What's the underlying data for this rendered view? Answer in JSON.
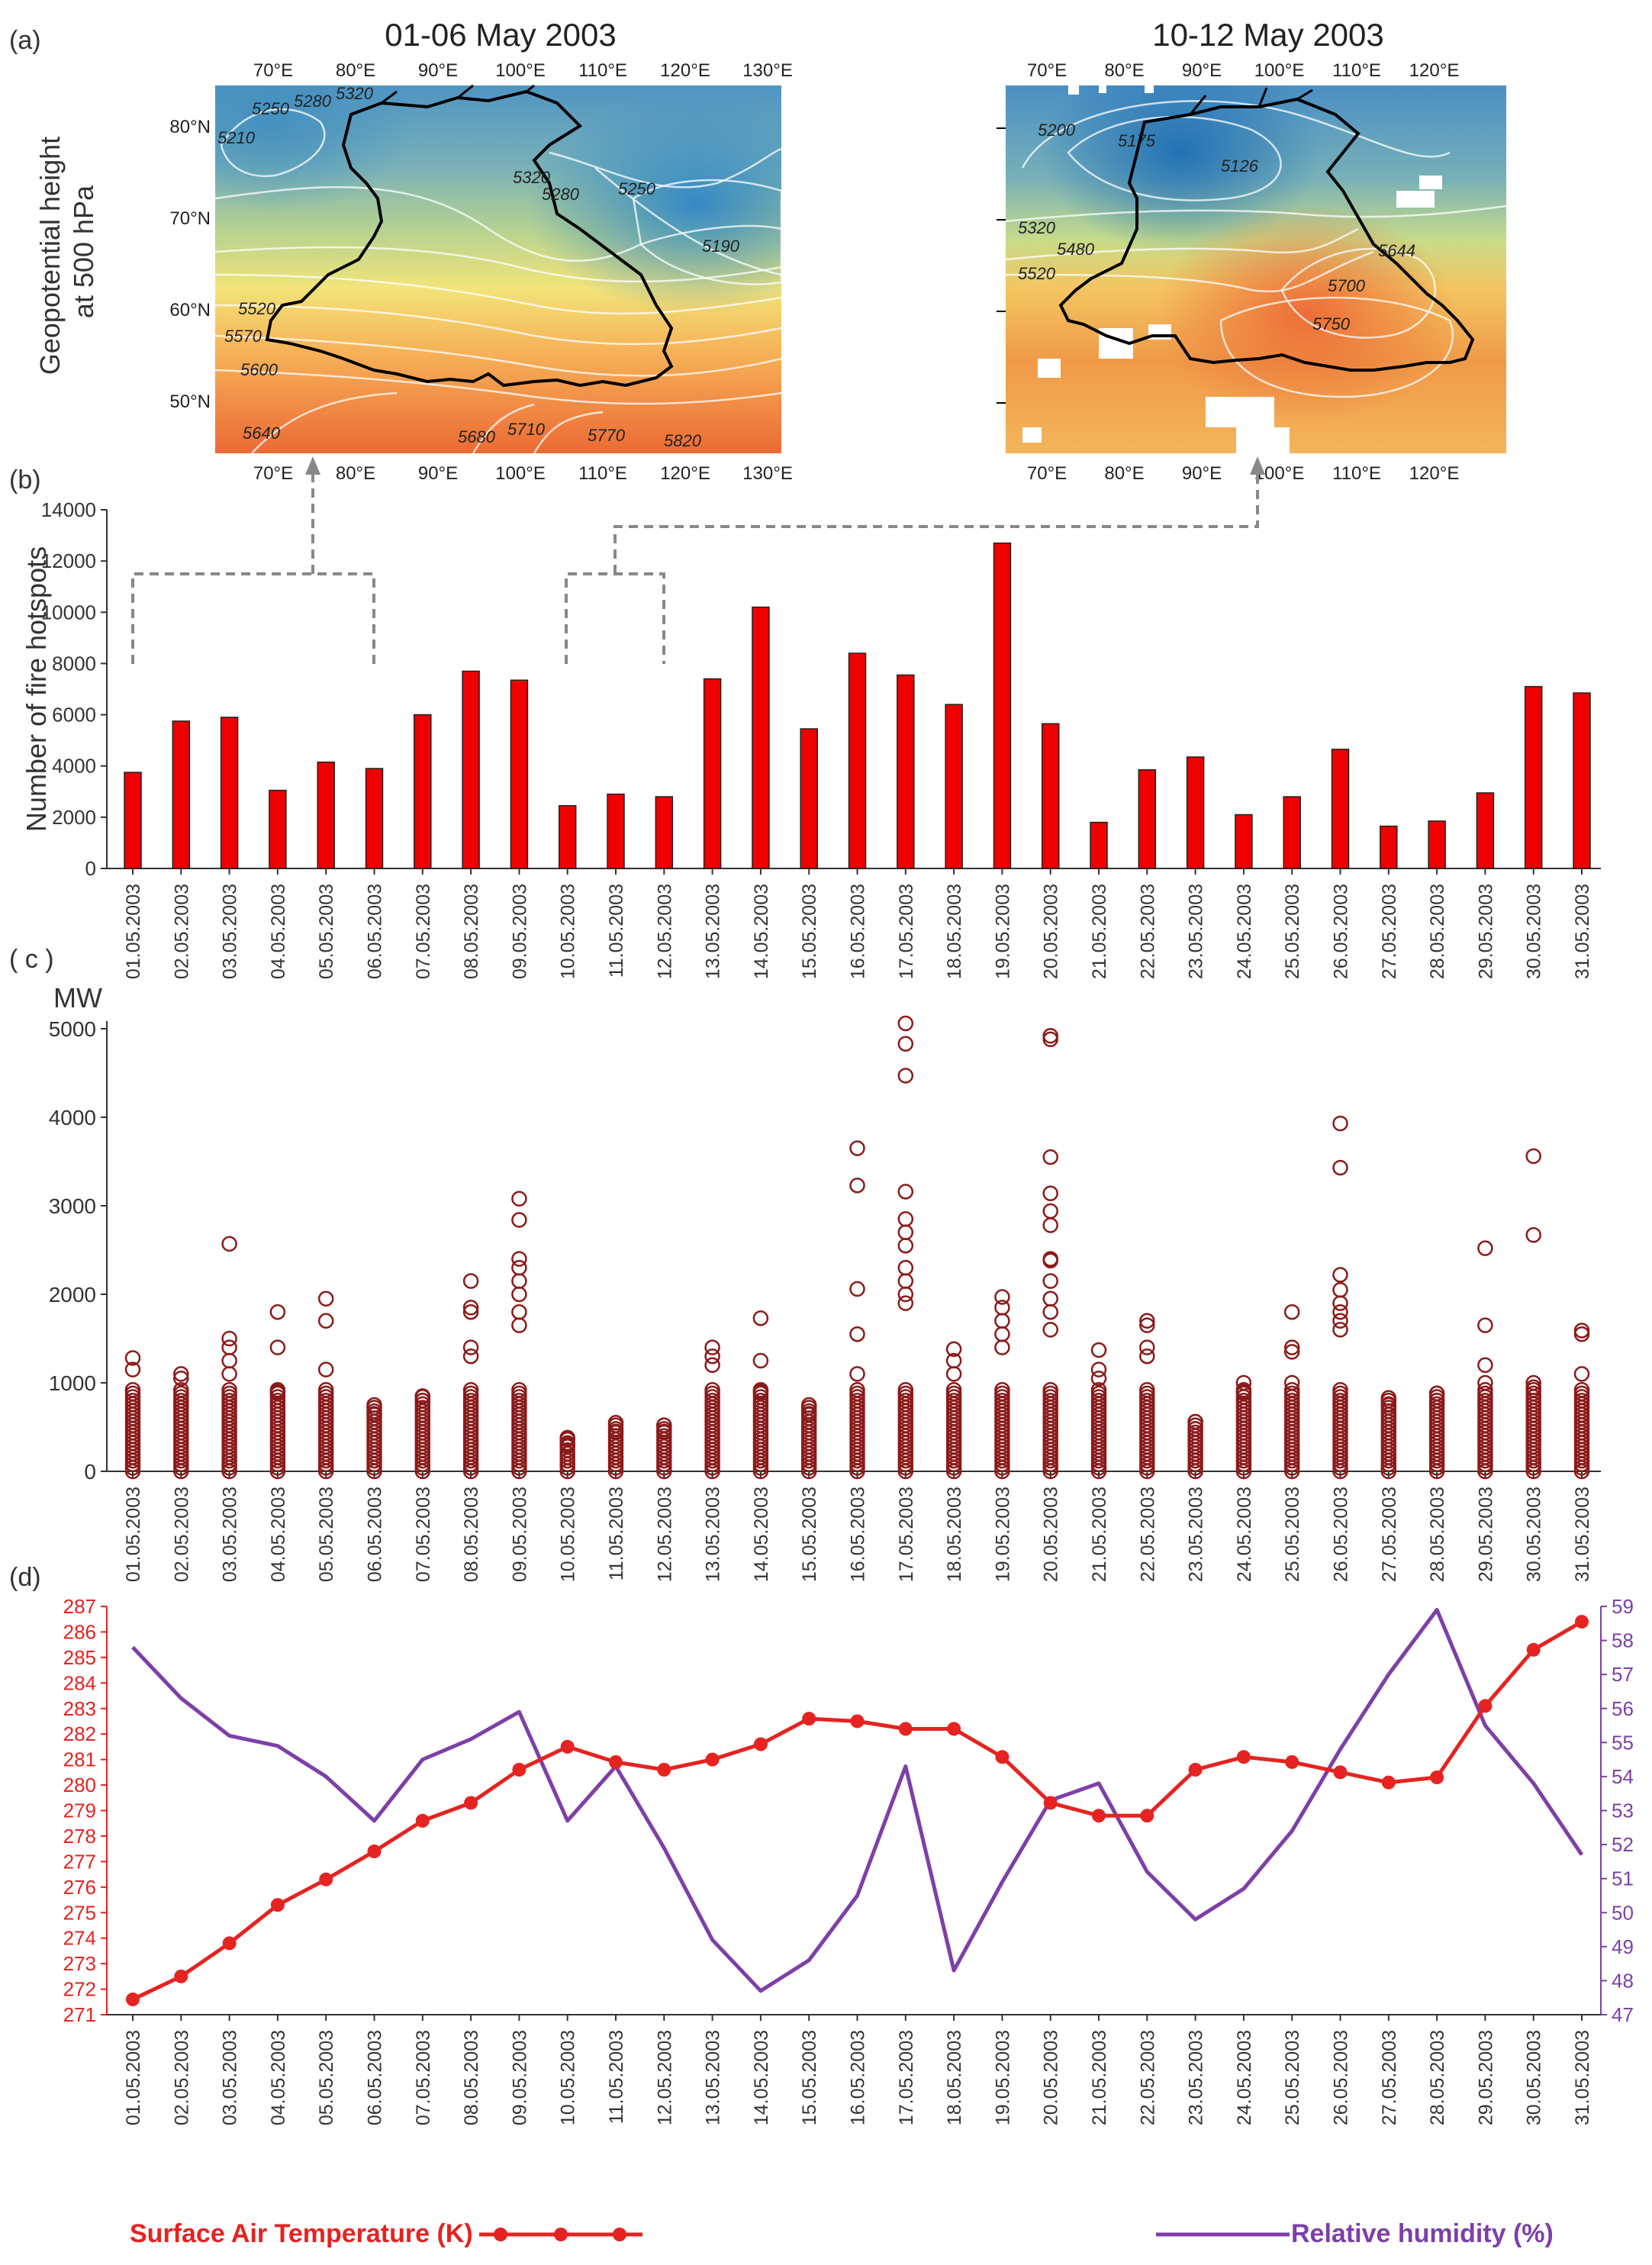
{
  "panel_labels": {
    "a": "(a)",
    "b": "(b)",
    "c": "( c )",
    "d": "(d)"
  },
  "colors": {
    "bars": "#ee0000",
    "frp_marker": "#8b1a1a",
    "temperature": "#e52320",
    "humidity": "#7e3fa8",
    "axis": "#333333",
    "dashed": "#888888"
  },
  "maps": {
    "ylabel": "Geopotential height at 500 hPa",
    "lat_ticks": [
      "80°N",
      "70°N",
      "60°N",
      "50°N"
    ],
    "left": {
      "title": "01-06 May 2003",
      "lon_ticks": [
        "70°E",
        "80°E",
        "90°E",
        "100°E",
        "110°E",
        "120°E",
        "130°E"
      ],
      "contour_labels": [
        "5250",
        "5280",
        "5320",
        "5210",
        "5320",
        "5280",
        "5250",
        "5190",
        "5520",
        "5570",
        "5600",
        "5640",
        "5680",
        "5710",
        "5770",
        "5820"
      ]
    },
    "right": {
      "title": "10-12 May 2003",
      "lon_ticks": [
        "70°E",
        "80°E",
        "90°E",
        "100°E",
        "110°E",
        "120°E"
      ],
      "contour_labels": [
        "5200",
        "5175",
        "5126",
        "5320",
        "5480",
        "5520",
        "5644",
        "5700",
        "5750"
      ]
    }
  },
  "chart_data": [
    {
      "id": "b",
      "type": "bar",
      "ylabel": "Number of fire hotspots",
      "ylim": [
        0,
        14000
      ],
      "yticks": [
        0,
        2000,
        4000,
        6000,
        8000,
        10000,
        12000,
        14000
      ],
      "categories": [
        "01.05.2003",
        "02.05.2003",
        "03.05.2003",
        "04.05.2003",
        "05.05.2003",
        "06.05.2003",
        "07.05.2003",
        "08.05.2003",
        "09.05.2003",
        "10.05.2003",
        "11.05.2003",
        "12.05.2003",
        "13.05.2003",
        "14.05.2003",
        "15.05.2003",
        "16.05.2003",
        "17.05.2003",
        "18.05.2003",
        "19.05.2003",
        "20.05.2003",
        "21.05.2003",
        "22.05.2003",
        "23.05.2003",
        "24.05.2003",
        "25.05.2003",
        "26.05.2003",
        "27.05.2003",
        "28.05.2003",
        "29.05.2003",
        "30.05.2003",
        "31.05.2003"
      ],
      "values": [
        3750,
        5750,
        5900,
        3050,
        4150,
        3900,
        6000,
        7700,
        7350,
        2450,
        2900,
        2800,
        7400,
        10200,
        5450,
        8400,
        7550,
        6400,
        12700,
        5650,
        1800,
        3850,
        4350,
        2100,
        2800,
        4650,
        1650,
        1850,
        2950,
        7100,
        6850
      ]
    },
    {
      "id": "c",
      "type": "scatter",
      "ylabel": "MW",
      "ylim": [
        0,
        5000
      ],
      "yticks": [
        0,
        1000,
        2000,
        3000,
        4000,
        5000
      ],
      "categories": [
        "01.05.2003",
        "02.05.2003",
        "03.05.2003",
        "04.05.2003",
        "05.05.2003",
        "06.05.2003",
        "07.05.2003",
        "08.05.2003",
        "09.05.2003",
        "10.05.2003",
        "11.05.2003",
        "12.05.2003",
        "13.05.2003",
        "14.05.2003",
        "15.05.2003",
        "16.05.2003",
        "17.05.2003",
        "18.05.2003",
        "19.05.2003",
        "20.05.2003",
        "21.05.2003",
        "22.05.2003",
        "23.05.2003",
        "24.05.2003",
        "25.05.2003",
        "26.05.2003",
        "27.05.2003",
        "28.05.2003",
        "29.05.2003",
        "30.05.2003",
        "31.05.2003"
      ],
      "max_values": [
        1280,
        1100,
        2570,
        1800,
        1950,
        750,
        850,
        2150,
        3080,
        380,
        550,
        520,
        1400,
        1730,
        750,
        3650,
        5060,
        1380,
        1970,
        4920,
        1370,
        1700,
        560,
        1000,
        1800,
        3930,
        830,
        880,
        2520,
        3560,
        1590
      ],
      "outliers": [
        [
          1150
        ],
        [
          1050
        ],
        [
          1500,
          1400,
          1250,
          1100
        ],
        [
          1400,
          900
        ],
        [
          1700,
          1150
        ],
        [
          650
        ],
        [
          800
        ],
        [
          1850,
          1800,
          1400,
          1300
        ],
        [
          2840,
          2400,
          2300,
          2150,
          2000,
          1800,
          1650
        ],
        [
          300
        ],
        [
          450
        ],
        [
          450
        ],
        [
          1300,
          1200
        ],
        [
          1250,
          900
        ],
        [
          650
        ],
        [
          3230,
          2060,
          1550,
          1100
        ],
        [
          4830,
          4470,
          3160,
          2850,
          2700,
          2550,
          2300,
          2150,
          2000,
          1900
        ],
        [
          1250,
          1100
        ],
        [
          1850,
          1700,
          1550,
          1400
        ],
        [
          4880,
          3550,
          3140,
          2940,
          2780,
          2400,
          2380,
          2150,
          1950,
          1800,
          1600
        ],
        [
          1150,
          1050
        ],
        [
          1650,
          1400,
          1300
        ],
        [
          480
        ],
        [
          900
        ],
        [
          1400,
          1350,
          1000
        ],
        [
          3430,
          2220,
          2050,
          1900,
          1800,
          1700,
          1600
        ],
        [
          750
        ],
        [
          800
        ],
        [
          1650,
          1200,
          1000
        ],
        [
          2670,
          1000,
          950
        ],
        [
          1550,
          1100
        ]
      ]
    },
    {
      "id": "d",
      "type": "line",
      "categories": [
        "01.05.2003",
        "02.05.2003",
        "03.05.2003",
        "04.05.2003",
        "05.05.2003",
        "06.05.2003",
        "07.05.2003",
        "08.05.2003",
        "09.05.2003",
        "10.05.2003",
        "11.05.2003",
        "12.05.2003",
        "13.05.2003",
        "14.05.2003",
        "15.05.2003",
        "16.05.2003",
        "17.05.2003",
        "18.05.2003",
        "19.05.2003",
        "20.05.2003",
        "21.05.2003",
        "22.05.2003",
        "23.05.2003",
        "24.05.2003",
        "25.05.2003",
        "26.05.2003",
        "27.05.2003",
        "28.05.2003",
        "29.05.2003",
        "30.05.2003",
        "31.05.2003"
      ],
      "y1": {
        "ylim": [
          271,
          287
        ],
        "yticks": [
          271,
          272,
          273,
          274,
          275,
          276,
          277,
          278,
          279,
          280,
          281,
          282,
          283,
          284,
          285,
          286,
          287
        ]
      },
      "y2": {
        "ylim": [
          47,
          59
        ],
        "yticks": [
          47,
          48,
          49,
          50,
          51,
          52,
          53,
          54,
          55,
          56,
          57,
          58,
          59
        ]
      },
      "series": [
        {
          "name": "Surface Air Temperature (K)",
          "axis": "y1",
          "marker": "circle",
          "values": [
            271.6,
            272.5,
            273.8,
            275.3,
            276.3,
            277.4,
            278.6,
            279.3,
            280.6,
            281.5,
            280.9,
            280.6,
            281.0,
            281.6,
            282.6,
            282.5,
            282.2,
            282.2,
            281.1,
            279.3,
            278.8,
            278.8,
            280.6,
            281.1,
            280.9,
            280.5,
            280.1,
            280.3,
            283.1,
            285.3,
            286.4
          ]
        },
        {
          "name": "Relative humidity (%)",
          "axis": "y2",
          "marker": "none",
          "values": [
            57.8,
            56.3,
            55.2,
            54.9,
            54.0,
            52.7,
            54.5,
            55.1,
            55.9,
            52.7,
            54.3,
            51.9,
            49.2,
            47.7,
            48.6,
            50.5,
            54.3,
            48.3,
            50.9,
            53.3,
            53.8,
            51.2,
            49.8,
            50.7,
            52.4,
            54.8,
            57.0,
            58.9,
            55.5,
            53.8,
            51.7
          ]
        }
      ]
    }
  ]
}
